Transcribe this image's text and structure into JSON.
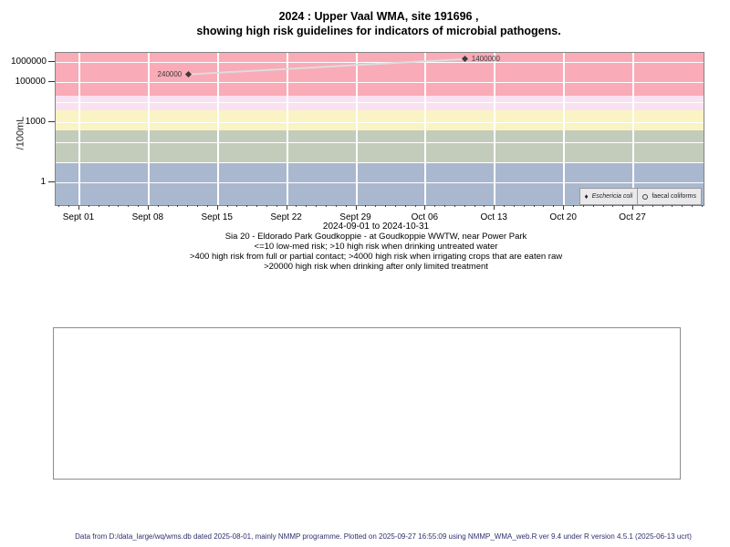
{
  "title": {
    "line1": "2024 : Upper Vaal WMA, site 191696 ,",
    "line2": "showing high risk guidelines for indicators of microbial pathogens."
  },
  "chart_data": {
    "type": "scatter",
    "title": "2024 : Upper Vaal WMA, site 191696 , showing high risk guidelines for indicators of microbial pathogens.",
    "ylabel": "/100mL",
    "xlabel": "2024-09-01 to 2024-10-31",
    "y_axis": {
      "scale": "log10",
      "tick_values": [
        1000000,
        100000,
        1000,
        1
      ],
      "tick_labels": [
        "1000000",
        "100000",
        "1000",
        "1"
      ],
      "gridline_values": [
        1,
        10,
        100,
        1000,
        10000,
        100000,
        1000000
      ]
    },
    "x_axis": {
      "start": "2024-09-01",
      "end": "2024-10-31",
      "tick_labels": [
        "Sept 01",
        "Sept 08",
        "Sept 15",
        "Sept 22",
        "Sept 29",
        "Oct 06",
        "Oct 13",
        "Oct 20",
        "Oct 27"
      ],
      "tick_day_offsets": [
        0,
        7,
        14,
        21,
        28,
        35,
        42,
        49,
        56
      ],
      "minor_tick_day_range": [
        -2,
        63
      ]
    },
    "series": [
      {
        "name": "Eschericia coli",
        "marker": "filled-diamond",
        "line_color": "#dcdcdc",
        "points": [
          {
            "day_offset": 11,
            "value": 240000,
            "label": "240000",
            "label_side": "left"
          },
          {
            "day_offset": 39,
            "value": 1400000,
            "label": "1400000",
            "label_side": "right"
          }
        ]
      },
      {
        "name": "faecal coliforms",
        "marker": "open-circle",
        "points": []
      }
    ],
    "risk_bands": [
      {
        "value_min": 20000,
        "value_max": null,
        "color": "#f9abb8",
        "meaning": ">20000 high risk when drinking after only limited treatment"
      },
      {
        "value_min": 4000,
        "value_max": 20000,
        "color": "#fae1f1",
        "meaning": ">4000 high risk when irrigating crops that are eaten raw"
      },
      {
        "value_min": 400,
        "value_max": 4000,
        "color": "#faf3c4",
        "meaning": ">400 high risk from full or partial contact"
      },
      {
        "value_min": 10,
        "value_max": 400,
        "color": "#c3ccba",
        "meaning": ">10 high risk when drinking untreated water"
      },
      {
        "value_min": null,
        "value_max": 10,
        "color": "#a9b8ce",
        "meaning": "<=10 low-med risk"
      }
    ],
    "legend": {
      "position": "bottom-right",
      "entries": [
        "Eschericia coli",
        "faecal coliforms"
      ]
    },
    "grid": true
  },
  "captions": {
    "site": "Sia 20 - Eldorado Park Goudkoppie - at Goudkoppie WWTW, near Power Park",
    "guideline1": "<=10 low-med risk; >10 high risk when drinking untreated water",
    "guideline2": ">400 high risk from full or partial contact; >4000 high risk when irrigating crops that are eaten raw",
    "guideline3": ">20000 high risk when drinking after only limited treatment"
  },
  "footer": "Data from D:/data_large/wq/wms.db dated 2025-08-01, mainly NMMP programme. Plotted on 2025-09-27 16:55:09 using NMMP_WMA_web.R ver 9.4 under R version 4.5.1 (2025-06-13 ucrt)"
}
